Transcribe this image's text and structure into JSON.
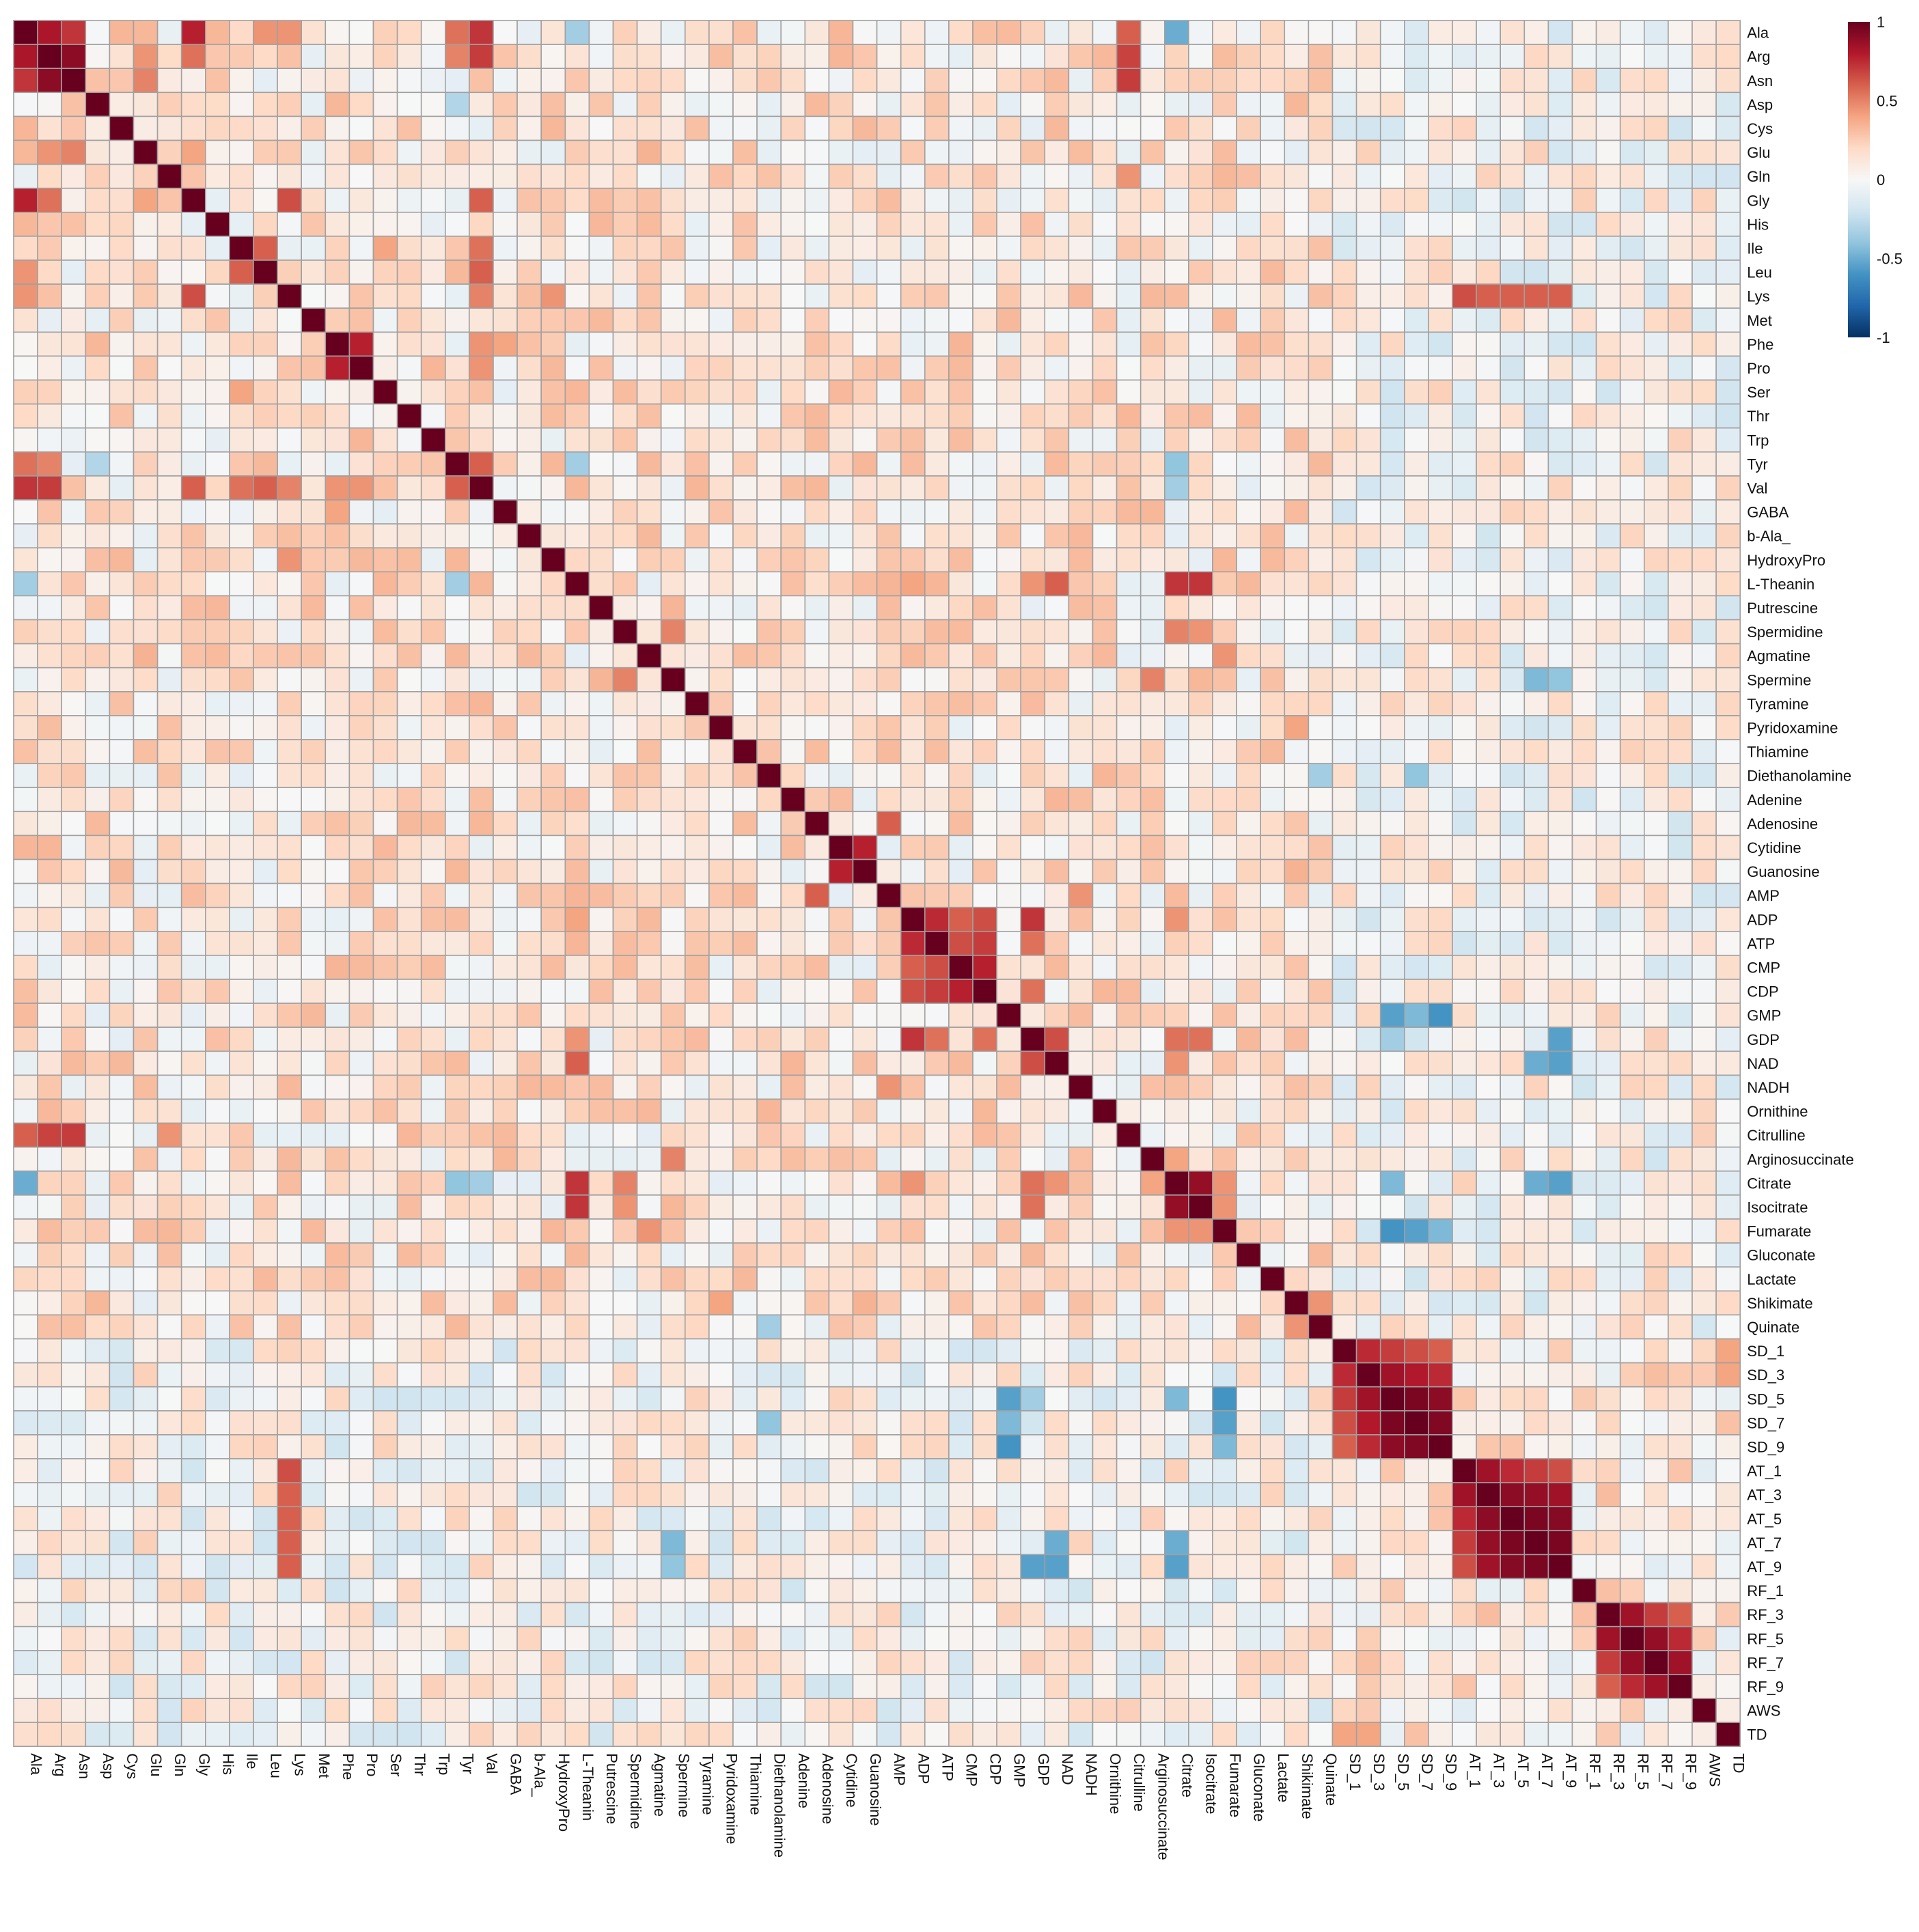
{
  "chart_data": {
    "type": "heatmap",
    "title": "",
    "xlabel": "",
    "ylabel": "",
    "labels": [
      "Ala",
      "Arg",
      "Asn",
      "Asp",
      "Cys",
      "Glu",
      "Gln",
      "Gly",
      "His",
      "Ile",
      "Leu",
      "Lys",
      "Met",
      "Phe",
      "Pro",
      "Ser",
      "Thr",
      "Trp",
      "Tyr",
      "Val",
      "GABA",
      "b-Ala_",
      "HydroxyPro",
      "L-Theanin",
      "Putrescine",
      "Spermidine",
      "Agmatine",
      "Spermine",
      "Tyramine",
      "Pyridoxamine",
      "Thiamine",
      "Diethanolamine",
      "Adenine",
      "Adenosine",
      "Cytidine",
      "Guanosine",
      "AMP",
      "ADP",
      "ATP",
      "CMP",
      "CDP",
      "GMP",
      "GDP",
      "NAD",
      "NADH",
      "Ornithine",
      "Citrulline",
      "Arginosuccinate",
      "Citrate",
      "Isocitrate",
      "Fumarate",
      "Gluconate",
      "Lactate",
      "Shikimate",
      "Quinate",
      "SD_1",
      "SD_3",
      "SD_5",
      "SD_7",
      "SD_9",
      "AT_1",
      "AT_3",
      "AT_5",
      "AT_7",
      "AT_9",
      "RF_1",
      "RF_3",
      "RF_5",
      "RF_7",
      "RF_9",
      "AWS",
      "TD"
    ],
    "value_range": [
      -1,
      1
    ],
    "colorbar": {
      "ticks": [
        1,
        0.5,
        0,
        -0.5,
        -1
      ],
      "tick_labels": [
        "1",
        "0.5",
        "0",
        "-0.5",
        "-1"
      ],
      "colors": [
        "#053061",
        "#2166ac",
        "#4393c3",
        "#92c5de",
        "#d1e5f0",
        "#f7f7f7",
        "#fddbc7",
        "#f4a582",
        "#d6604d",
        "#b2182b",
        "#67001f"
      ]
    },
    "grid": true,
    "legend_position": "top-right",
    "symmetric": true,
    "diagonal_value": 1,
    "pairs": [
      [
        "Ala",
        "Arg",
        0.82
      ],
      [
        "Ala",
        "Asn",
        0.72
      ],
      [
        "Arg",
        "Asn",
        0.9
      ],
      [
        "Ala",
        "Gly",
        0.78
      ],
      [
        "Ala",
        "Val",
        0.72
      ],
      [
        "Arg",
        "Val",
        0.7
      ],
      [
        "Ala",
        "Tyr",
        0.55
      ],
      [
        "Arg",
        "Tyr",
        0.5
      ],
      [
        "Ala",
        "Citrulline",
        0.6
      ],
      [
        "Arg",
        "Citrulline",
        0.68
      ],
      [
        "Asn",
        "Citrulline",
        0.7
      ],
      [
        "Ala",
        "Lys",
        0.45
      ],
      [
        "Ala",
        "Leu",
        0.45
      ],
      [
        "Arg",
        "Glu",
        0.45
      ],
      [
        "Arg",
        "Gly",
        0.55
      ],
      [
        "Asn",
        "Glu",
        0.5
      ],
      [
        "Glu",
        "Gly",
        0.4
      ],
      [
        "Gly",
        "Lys",
        0.65
      ],
      [
        "Gly",
        "Val",
        0.6
      ],
      [
        "Ile",
        "Leu",
        0.6
      ],
      [
        "Ile",
        "Val",
        0.55
      ],
      [
        "Leu",
        "Val",
        0.6
      ],
      [
        "Lys",
        "Val",
        0.5
      ],
      [
        "Phe",
        "Pro",
        0.78
      ],
      [
        "Phe",
        "Val",
        0.45
      ],
      [
        "Pro",
        "Val",
        0.45
      ],
      [
        "Phe",
        "GABA",
        0.4
      ],
      [
        "Tyr",
        "Val",
        0.6
      ],
      [
        "Lys",
        "HydroxyPro",
        0.45
      ],
      [
        "Ser",
        "Ile",
        0.4
      ],
      [
        "Glu",
        "Agmatine",
        0.35
      ],
      [
        "Gln",
        "Citrulline",
        0.45
      ],
      [
        "Ala",
        "L-Theanin",
        -0.35
      ],
      [
        "Ala",
        "Citrate",
        -0.5
      ],
      [
        "Tyr",
        "Citrate",
        -0.4
      ],
      [
        "Val",
        "Citrate",
        -0.35
      ],
      [
        "Tyr",
        "Asp",
        -0.3
      ],
      [
        "Tyr",
        "L-Theanin",
        -0.35
      ],
      [
        "L-Theanin",
        "Citrate",
        0.72
      ],
      [
        "L-Theanin",
        "Isocitrate",
        0.72
      ],
      [
        "L-Theanin",
        "NAD",
        0.6
      ],
      [
        "L-Theanin",
        "ADP",
        0.4
      ],
      [
        "L-Theanin",
        "GDP",
        0.45
      ],
      [
        "Spermidine",
        "Spermine",
        0.5
      ],
      [
        "Spermidine",
        "Citrate",
        0.5
      ],
      [
        "Spermidine",
        "Isocitrate",
        0.45
      ],
      [
        "Spermine",
        "Arginosuccinate",
        0.5
      ],
      [
        "Agmatine",
        "Fumarate",
        0.45
      ],
      [
        "Cytidine",
        "Guanosine",
        0.78
      ],
      [
        "Adenosine",
        "AMP",
        0.6
      ],
      [
        "Diethanolamine",
        "Quinate",
        -0.35
      ],
      [
        "AMP",
        "NADH",
        0.45
      ],
      [
        "ADP",
        "ATP",
        0.75
      ],
      [
        "ADP",
        "CMP",
        0.6
      ],
      [
        "ADP",
        "CDP",
        0.65
      ],
      [
        "ATP",
        "CMP",
        0.65
      ],
      [
        "ATP",
        "CDP",
        0.7
      ],
      [
        "CMP",
        "CDP",
        0.78
      ],
      [
        "ADP",
        "GDP",
        0.72
      ],
      [
        "ATP",
        "GDP",
        0.55
      ],
      [
        "CDP",
        "GDP",
        0.55
      ],
      [
        "GDP",
        "NAD",
        0.65
      ],
      [
        "ADP",
        "Citrate",
        0.45
      ],
      [
        "GDP",
        "Citrate",
        0.55
      ],
      [
        "GDP",
        "Isocitrate",
        0.55
      ],
      [
        "NAD",
        "Citrate",
        0.45
      ],
      [
        "Citrate",
        "Isocitrate",
        0.88
      ],
      [
        "Arginosuccinate",
        "Citrate",
        0.4
      ],
      [
        "Citrate",
        "Fumarate",
        0.45
      ],
      [
        "Isocitrate",
        "Fumarate",
        0.45
      ],
      [
        "Shikimate",
        "Quinate",
        0.45
      ],
      [
        "Pyridoxamine",
        "Shikimate",
        0.4
      ],
      [
        "Guanosine",
        "Shikimate",
        0.35
      ],
      [
        "SD_1",
        "SD_3",
        0.75
      ],
      [
        "SD_1",
        "SD_5",
        0.7
      ],
      [
        "SD_1",
        "SD_7",
        0.65
      ],
      [
        "SD_1",
        "SD_9",
        0.6
      ],
      [
        "SD_3",
        "SD_5",
        0.85
      ],
      [
        "SD_3",
        "SD_7",
        0.8
      ],
      [
        "SD_3",
        "SD_9",
        0.75
      ],
      [
        "SD_5",
        "SD_7",
        0.95
      ],
      [
        "SD_5",
        "SD_9",
        0.9
      ],
      [
        "SD_7",
        "SD_9",
        0.93
      ],
      [
        "AT_1",
        "AT_3",
        0.85
      ],
      [
        "AT_1",
        "AT_5",
        0.75
      ],
      [
        "AT_1",
        "AT_7",
        0.7
      ],
      [
        "AT_1",
        "AT_9",
        0.65
      ],
      [
        "AT_3",
        "AT_5",
        0.9
      ],
      [
        "AT_3",
        "AT_7",
        0.88
      ],
      [
        "AT_3",
        "AT_9",
        0.85
      ],
      [
        "AT_5",
        "AT_7",
        0.95
      ],
      [
        "AT_5",
        "AT_9",
        0.92
      ],
      [
        "AT_7",
        "AT_9",
        0.95
      ],
      [
        "RF_1",
        "RF_3",
        0.3
      ],
      [
        "RF_3",
        "RF_5",
        0.85
      ],
      [
        "RF_3",
        "RF_7",
        0.7
      ],
      [
        "RF_3",
        "RF_9",
        0.6
      ],
      [
        "RF_5",
        "RF_7",
        0.88
      ],
      [
        "RF_5",
        "RF_9",
        0.75
      ],
      [
        "RF_7",
        "RF_9",
        0.85
      ],
      [
        "SD_1",
        "TD",
        0.4
      ],
      [
        "SD_3",
        "TD",
        0.4
      ],
      [
        "Lys",
        "AT_1",
        0.65
      ],
      [
        "Lys",
        "AT_3",
        0.6
      ],
      [
        "Lys",
        "AT_5",
        0.6
      ],
      [
        "Lys",
        "AT_7",
        0.6
      ],
      [
        "Lys",
        "AT_9",
        0.6
      ],
      [
        "GMP",
        "SD_5",
        -0.55
      ],
      [
        "GMP",
        "SD_7",
        -0.45
      ],
      [
        "GMP",
        "SD_9",
        -0.6
      ],
      [
        "GDP",
        "SD_5",
        -0.35
      ],
      [
        "Citrate",
        "SD_5",
        -0.45
      ],
      [
        "Fumarate",
        "SD_5",
        -0.6
      ],
      [
        "Fumarate",
        "SD_7",
        -0.55
      ],
      [
        "Fumarate",
        "SD_9",
        -0.45
      ],
      [
        "Diethanolamine",
        "SD_7",
        -0.4
      ],
      [
        "NAD",
        "AT_7",
        -0.5
      ],
      [
        "NAD",
        "AT_9",
        -0.55
      ],
      [
        "GDP",
        "AT_9",
        -0.55
      ],
      [
        "Citrate",
        "AT_7",
        -0.5
      ],
      [
        "Citrate",
        "AT_9",
        -0.55
      ],
      [
        "Spermine",
        "AT_7",
        -0.45
      ],
      [
        "Spermine",
        "AT_9",
        -0.4
      ]
    ]
  }
}
